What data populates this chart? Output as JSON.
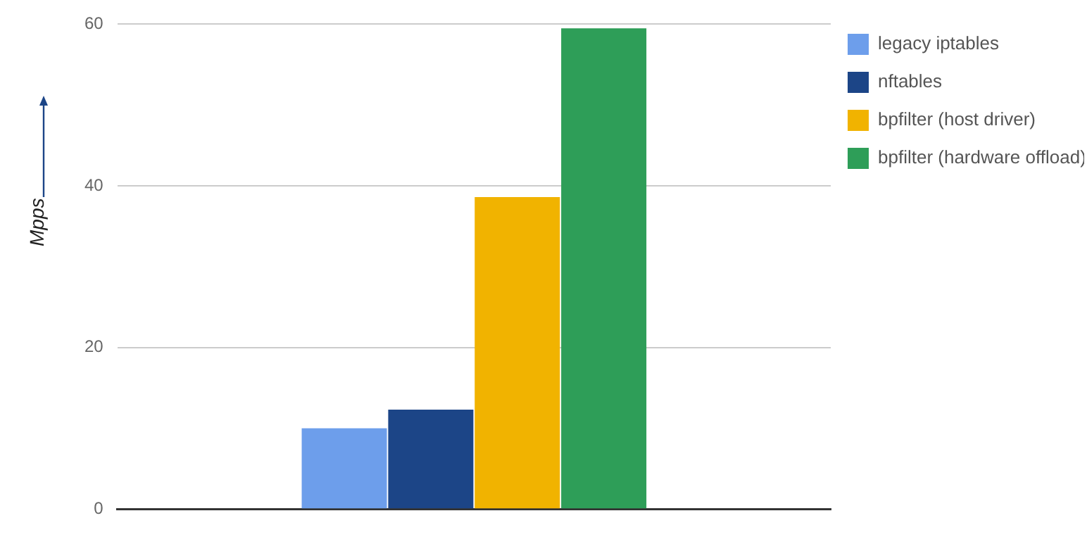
{
  "chart_data": {
    "type": "bar",
    "ylabel": "Mpps",
    "categories": [
      null
    ],
    "series": [
      {
        "name": "legacy iptables",
        "color": "#6d9eeb",
        "values": [
          10
        ]
      },
      {
        "name": "nftables",
        "color": "#1c4587",
        "values": [
          12.3
        ]
      },
      {
        "name": "bpfilter (host driver)",
        "color": "#f1b300",
        "values": [
          38.6
        ]
      },
      {
        "name": "bpfilter (hardware offload)",
        "color": "#2e9e58",
        "values": [
          59.5
        ]
      }
    ],
    "ylim": [
      0,
      60
    ],
    "yticks": [
      0,
      20,
      40,
      60
    ],
    "grid": "y",
    "legend": "right"
  }
}
